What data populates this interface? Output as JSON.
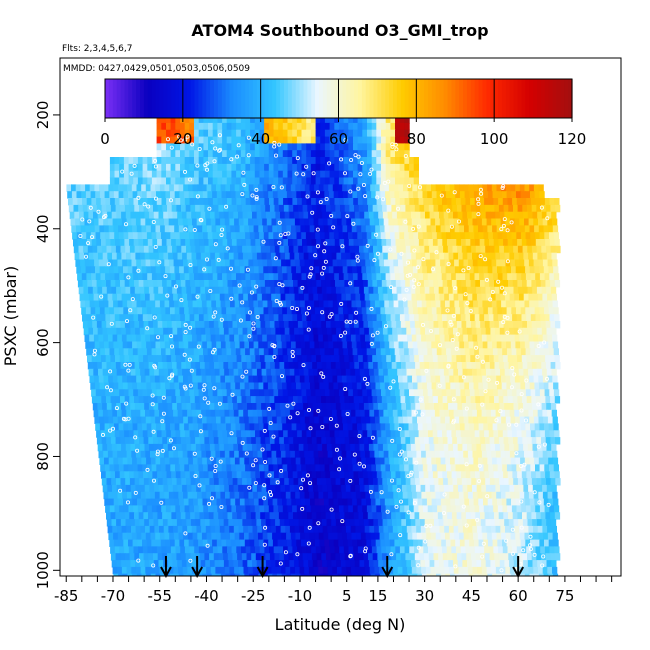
{
  "chart_data": {
    "type": "heatmap",
    "title": "ATOM4 Southbound O3_GMI_trop",
    "flights_label": "Flts: 2,3,4,5,6,7",
    "dates_label": "MMDD: 0427,0429,0501,0503,0506,0509",
    "xlabel": "Latitude (deg N)",
    "ylabel": "PSXC (mbar)",
    "x_tick_labels": [
      "-85",
      "-70",
      "-55",
      "-40",
      "-25",
      "-10",
      "5",
      "15",
      "30",
      "45",
      "60",
      "75"
    ],
    "x_ticks": [
      -85,
      -70,
      -55,
      -40,
      -25,
      -10,
      5,
      15,
      30,
      45,
      60,
      75
    ],
    "x_minor_step": 5,
    "xlim": [
      -87,
      93
    ],
    "y_tick_labels": [
      "200",
      "400",
      "600",
      "800",
      "1000"
    ],
    "y_ticks": [
      200,
      400,
      600,
      800,
      1000
    ],
    "ylim": [
      1010,
      100
    ],
    "colorbar": {
      "min": 0,
      "max": 120,
      "tick_labels": [
        "0",
        "20",
        "40",
        "60",
        "80",
        "100",
        "120"
      ],
      "ticks": [
        0,
        20,
        40,
        60,
        80,
        100,
        120
      ],
      "colors": [
        "#7b2ff5",
        "#0a00c0",
        "#0016e6",
        "#1a8cff",
        "#33c6ff",
        "#eaf6ff",
        "#fff5a0",
        "#ffcc00",
        "#ff8c00",
        "#ff2a00",
        "#d40000",
        "#a30f0f"
      ]
    },
    "arrow_latitudes": [
      -53,
      -43,
      -22,
      18,
      60
    ],
    "value_field": {
      "description": "O3 (ppbv) as function of latitude and pressure",
      "anchor_latitudes": [
        -70,
        -55,
        -45,
        -30,
        -15,
        -5,
        10,
        18,
        30,
        45,
        60,
        72
      ],
      "anchor_values_lower": [
        38,
        37,
        36,
        30,
        22,
        14,
        18,
        35,
        55,
        58,
        52,
        42
      ],
      "anchor_values_upper": [
        48,
        50,
        45,
        42,
        30,
        22,
        36,
        70,
        78,
        88,
        95,
        85
      ]
    }
  }
}
